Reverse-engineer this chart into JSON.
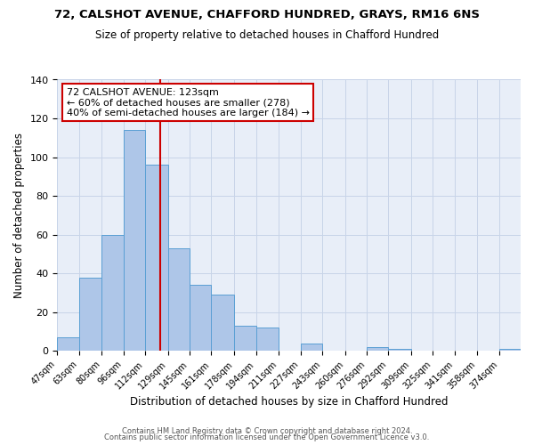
{
  "title1": "72, CALSHOT AVENUE, CHAFFORD HUNDRED, GRAYS, RM16 6NS",
  "title2": "Size of property relative to detached houses in Chafford Hundred",
  "xlabel": "Distribution of detached houses by size in Chafford Hundred",
  "ylabel": "Number of detached properties",
  "bar_labels": [
    "47sqm",
    "63sqm",
    "80sqm",
    "96sqm",
    "112sqm",
    "129sqm",
    "145sqm",
    "161sqm",
    "178sqm",
    "194sqm",
    "211sqm",
    "227sqm",
    "243sqm",
    "260sqm",
    "276sqm",
    "292sqm",
    "309sqm",
    "325sqm",
    "341sqm",
    "358sqm",
    "374sqm"
  ],
  "bar_values": [
    7,
    38,
    60,
    114,
    96,
    53,
    34,
    29,
    13,
    12,
    0,
    4,
    0,
    0,
    2,
    1,
    0,
    0,
    0,
    0,
    1
  ],
  "bar_color": "#aec6e8",
  "bar_edge_color": "#5a9fd4",
  "vline_x": 123,
  "vline_color": "#cc0000",
  "annotation_title": "72 CALSHOT AVENUE: 123sqm",
  "annotation_line1": "← 60% of detached houses are smaller (278)",
  "annotation_line2": "40% of semi-detached houses are larger (184) →",
  "annotation_box_color": "#ffffff",
  "annotation_box_edge": "#cc0000",
  "bin_edges": [
    47,
    63,
    80,
    96,
    112,
    129,
    145,
    161,
    178,
    194,
    211,
    227,
    243,
    260,
    276,
    292,
    309,
    325,
    341,
    358,
    374,
    390
  ],
  "ylim": [
    0,
    140
  ],
  "yticks": [
    0,
    20,
    40,
    60,
    80,
    100,
    120,
    140
  ],
  "footer1": "Contains HM Land Registry data © Crown copyright and database right 2024.",
  "footer2": "Contains public sector information licensed under the Open Government Licence v3.0.",
  "background_color": "#e8eef8",
  "plot_background": "#ffffff",
  "grid_color": "#c8d4e8"
}
